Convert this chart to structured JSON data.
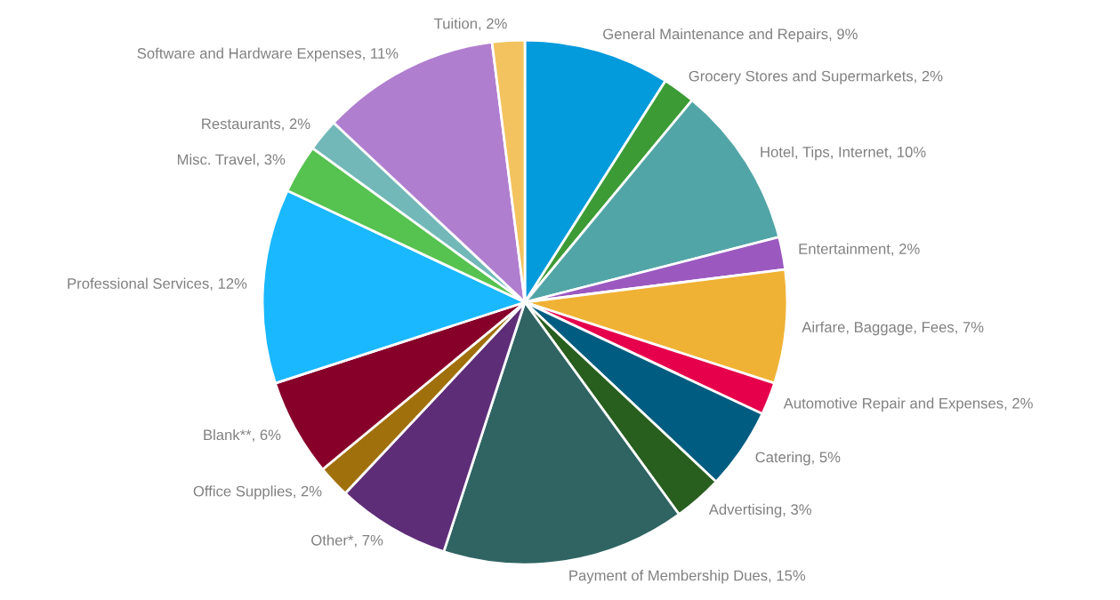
{
  "chart_data": {
    "type": "pie",
    "categories": [
      "General Maintenance and Repairs",
      "Grocery Stores and Supermarkets",
      "Hotel, Tips, Internet",
      "Entertainment",
      "Airfare, Baggage, Fees",
      "Automotive Repair and Expenses",
      "Catering",
      "Advertising",
      "Payment of Membership Dues",
      "Other*",
      "Office Supplies",
      "Blank**",
      "Professional Services",
      "Misc. Travel",
      "Restaurants",
      "Software and Hardware Expenses",
      "Tuition"
    ],
    "values": [
      9,
      2,
      10,
      2,
      7,
      2,
      5,
      3,
      15,
      7,
      2,
      6,
      12,
      3,
      2,
      11,
      2
    ],
    "value_labels": [
      "9%",
      "2%",
      "10%",
      "2%",
      "7%",
      "2%",
      "5%",
      "3%",
      "15%",
      "7%",
      "2%",
      "6%",
      "12%",
      "3%",
      "2%",
      "11%",
      "2%"
    ],
    "colors": [
      "#049bdc",
      "#3c9b35",
      "#52a5a6",
      "#9b59c0",
      "#f0b235",
      "#e6004c",
      "#005c80",
      "#285e1e",
      "#2f6463",
      "#5e2d78",
      "#a0700c",
      "#87002a",
      "#1ab8ff",
      "#56c24f",
      "#72b8b8",
      "#b07ecf",
      "#f3c35f"
    ],
    "legend": false
  }
}
